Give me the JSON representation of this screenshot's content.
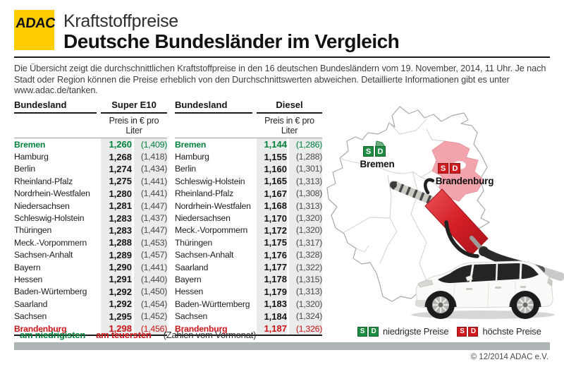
{
  "header": {
    "logo_text": "ADAC",
    "kicker": "Kraftstoffpreise",
    "title": "Deutsche Bundesländer im Vergleich"
  },
  "intro": "Die Übersicht zeigt die durchschnittlichen Kraftstoffpreise in den 16 deutschen Bundesländern vom 19. November, 2014, 11 Uhr. Je nach Stadt oder Region können die Preise erheblich von den Durchschnittswerten abweichen. Detaillierte Informationen gibt es unter www.adac.de/tanken.",
  "tables": [
    {
      "state_header": "Bundesland",
      "fuel_header": "Super E10",
      "unit_header": "Preis in € pro Liter",
      "rows": [
        {
          "state": "Bremen",
          "price": "1,260",
          "prev": "(1,409)",
          "highlight": "lowest"
        },
        {
          "state": "Hamburg",
          "price": "1,268",
          "prev": "(1,418)"
        },
        {
          "state": "Berlin",
          "price": "1,274",
          "prev": "(1,434)"
        },
        {
          "state": "Rheinland-Pfalz",
          "price": "1,275",
          "prev": "(1,441)"
        },
        {
          "state": "Nordrhein-Westfalen",
          "price": "1,280",
          "prev": "(1,441)"
        },
        {
          "state": "Niedersachsen",
          "price": "1,281",
          "prev": "(1,447)"
        },
        {
          "state": "Schleswig-Holstein",
          "price": "1,283",
          "prev": "(1,437)"
        },
        {
          "state": "Thüringen",
          "price": "1,283",
          "prev": "(1,447)"
        },
        {
          "state": "Meck.-Vorpommern",
          "price": "1,288",
          "prev": "(1,453)"
        },
        {
          "state": "Sachsen-Anhalt",
          "price": "1,289",
          "prev": "(1,457)"
        },
        {
          "state": "Bayern",
          "price": "1,290",
          "prev": "(1,441)"
        },
        {
          "state": "Hessen",
          "price": "1,291",
          "prev": "(1,440)"
        },
        {
          "state": "Baden-Würtemberg",
          "price": "1,292",
          "prev": "(1,450)"
        },
        {
          "state": "Saarland",
          "price": "1,292",
          "prev": "(1,454)"
        },
        {
          "state": "Sachsen",
          "price": "1,295",
          "prev": "(1,452)"
        },
        {
          "state": "Brandenburg",
          "price": "1,298",
          "prev": "(1,456)",
          "highlight": "highest"
        }
      ]
    },
    {
      "state_header": "Bundesland",
      "fuel_header": "Diesel",
      "unit_header": "Preis in € pro Liter",
      "rows": [
        {
          "state": "Bremen",
          "price": "1,144",
          "prev": "(1,286)",
          "highlight": "lowest"
        },
        {
          "state": "Hamburg",
          "price": "1,155",
          "prev": "(1,288)"
        },
        {
          "state": "Berlin",
          "price": "1,160",
          "prev": "(1,301)"
        },
        {
          "state": "Schleswig-Holstein",
          "price": "1,165",
          "prev": "(1,313)"
        },
        {
          "state": "Rheinland-Pfalz",
          "price": "1,167",
          "prev": "(1,308)"
        },
        {
          "state": "Nordrhein-Westfalen",
          "price": "1,168",
          "prev": "(1,313)"
        },
        {
          "state": "Niedersachsen",
          "price": "1,170",
          "prev": "(1,320)"
        },
        {
          "state": "Meck.-Vorpommern",
          "price": "1,172",
          "prev": "(1,320)"
        },
        {
          "state": "Thüringen",
          "price": "1,175",
          "prev": "(1,317)"
        },
        {
          "state": "Sachsen-Anhalt",
          "price": "1,176",
          "prev": "(1,328)"
        },
        {
          "state": "Saarland",
          "price": "1,177",
          "prev": "(1,322)"
        },
        {
          "state": "Bayern",
          "price": "1,178",
          "prev": "(1,315)"
        },
        {
          "state": "Hessen",
          "price": "1,179",
          "prev": "(1,313)"
        },
        {
          "state": "Baden-Württemberg",
          "price": "1,183",
          "prev": "(1,320)"
        },
        {
          "state": "Sachsen",
          "price": "1,184",
          "prev": "(1,324)"
        },
        {
          "state": "Brandenburg",
          "price": "1,187",
          "prev": "(1,326)",
          "highlight": "highest"
        }
      ]
    }
  ],
  "badges": {
    "s": "S",
    "d": "D"
  },
  "map": {
    "low_state_label": "Bremen",
    "high_state_label": "Brandenburg"
  },
  "legend": {
    "lowest": "am niedrigisten",
    "highest": "am teuersten",
    "note": "(Zahlen vom Vormonat)",
    "map_lowest": "niedrigste Preise",
    "map_highest": "höchste Preise"
  },
  "footer": {
    "copyright": "© 12/2014 ADAC e.V."
  },
  "colors": {
    "accent_yellow": "#FFCC00",
    "lowest_green": "#00823C",
    "highest_red": "#CC1417",
    "state_fill_pink": "#F2A3AC",
    "price_cell_bg": "#E9ECEA",
    "bottom_bar_gray": "#AEB4B6"
  },
  "chart_data": [
    {
      "type": "table",
      "title": "Super E10 — Preis in € pro Liter (19. November 2014, 11 Uhr)",
      "columns": [
        "Bundesland",
        "Preis",
        "Vormonat"
      ],
      "rows": [
        [
          "Bremen",
          1.26,
          1.409
        ],
        [
          "Hamburg",
          1.268,
          1.418
        ],
        [
          "Berlin",
          1.274,
          1.434
        ],
        [
          "Rheinland-Pfalz",
          1.275,
          1.441
        ],
        [
          "Nordrhein-Westfalen",
          1.28,
          1.441
        ],
        [
          "Niedersachsen",
          1.281,
          1.447
        ],
        [
          "Schleswig-Holstein",
          1.283,
          1.437
        ],
        [
          "Thüringen",
          1.283,
          1.447
        ],
        [
          "Meck.-Vorpommern",
          1.288,
          1.453
        ],
        [
          "Sachsen-Anhalt",
          1.289,
          1.457
        ],
        [
          "Bayern",
          1.29,
          1.441
        ],
        [
          "Hessen",
          1.291,
          1.44
        ],
        [
          "Baden-Würtemberg",
          1.292,
          1.45
        ],
        [
          "Saarland",
          1.292,
          1.454
        ],
        [
          "Sachsen",
          1.295,
          1.452
        ],
        [
          "Brandenburg",
          1.298,
          1.456
        ]
      ],
      "lowest": "Bremen",
      "highest": "Brandenburg"
    },
    {
      "type": "table",
      "title": "Diesel — Preis in € pro Liter (19. November 2014, 11 Uhr)",
      "columns": [
        "Bundesland",
        "Preis",
        "Vormonat"
      ],
      "rows": [
        [
          "Bremen",
          1.144,
          1.286
        ],
        [
          "Hamburg",
          1.155,
          1.288
        ],
        [
          "Berlin",
          1.16,
          1.301
        ],
        [
          "Schleswig-Holstein",
          1.165,
          1.313
        ],
        [
          "Rheinland-Pfalz",
          1.167,
          1.308
        ],
        [
          "Nordrhein-Westfalen",
          1.168,
          1.313
        ],
        [
          "Niedersachsen",
          1.17,
          1.32
        ],
        [
          "Meck.-Vorpommern",
          1.172,
          1.32
        ],
        [
          "Thüringen",
          1.175,
          1.317
        ],
        [
          "Sachsen-Anhalt",
          1.176,
          1.328
        ],
        [
          "Saarland",
          1.177,
          1.322
        ],
        [
          "Bayern",
          1.178,
          1.315
        ],
        [
          "Hessen",
          1.179,
          1.313
        ],
        [
          "Baden-Württemberg",
          1.183,
          1.32
        ],
        [
          "Sachsen",
          1.184,
          1.324
        ],
        [
          "Brandenburg",
          1.187,
          1.326
        ]
      ],
      "lowest": "Bremen",
      "highest": "Brandenburg"
    }
  ]
}
